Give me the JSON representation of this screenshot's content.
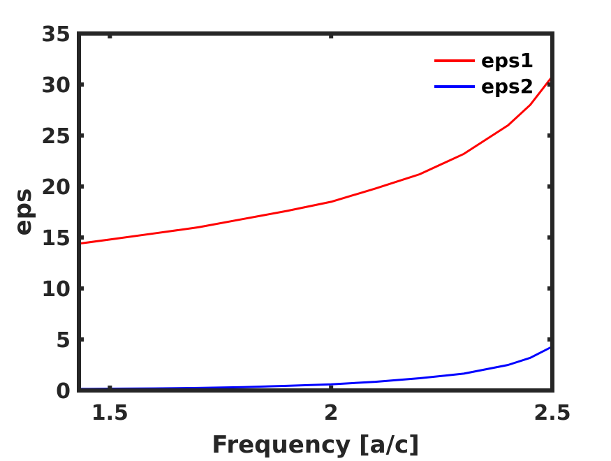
{
  "chart_data": {
    "type": "line",
    "title": "",
    "xlabel": "Frequency [a/c]",
    "ylabel": "eps",
    "xlim": [
      1.43,
      2.5
    ],
    "ylim": [
      0,
      35
    ],
    "xticks": [
      1.5,
      2,
      2.5
    ],
    "xtick_labels": [
      "1.5",
      "2",
      "2.5"
    ],
    "yticks": [
      0,
      5,
      10,
      15,
      20,
      25,
      30,
      35
    ],
    "ytick_labels": [
      "0",
      "5",
      "10",
      "15",
      "20",
      "25",
      "30",
      "35"
    ],
    "grid": false,
    "legend_position": "top-right",
    "series": [
      {
        "name": "eps1",
        "color": "#ff0000",
        "x": [
          1.43,
          1.5,
          1.6,
          1.7,
          1.8,
          1.9,
          2.0,
          2.1,
          2.2,
          2.3,
          2.4,
          2.45,
          2.5
        ],
        "y": [
          14.4,
          14.8,
          15.4,
          16.0,
          16.8,
          17.6,
          18.5,
          19.8,
          21.2,
          23.2,
          26.0,
          28.0,
          30.8
        ]
      },
      {
        "name": "eps2",
        "color": "#0000ff",
        "x": [
          1.43,
          1.5,
          1.6,
          1.7,
          1.8,
          1.9,
          2.0,
          2.1,
          2.2,
          2.3,
          2.4,
          2.45,
          2.5
        ],
        "y": [
          0.15,
          0.17,
          0.2,
          0.25,
          0.33,
          0.45,
          0.6,
          0.85,
          1.2,
          1.65,
          2.5,
          3.2,
          4.3
        ]
      }
    ]
  }
}
